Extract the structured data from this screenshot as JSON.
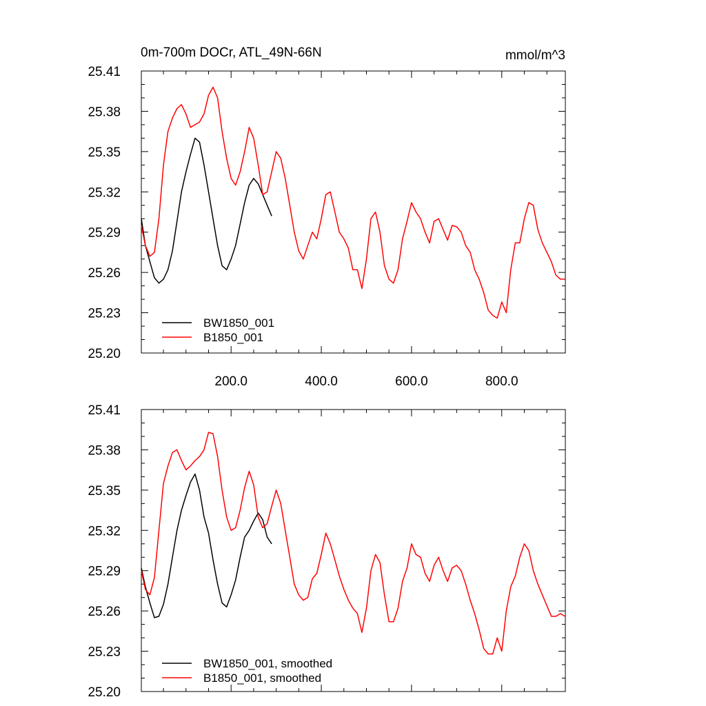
{
  "figure": {
    "title_left": "0m-700m DOCr, ATL_49N-66N",
    "title_right": "mmol/m^3"
  },
  "chart_data": [
    {
      "type": "line",
      "panel": "top",
      "xlim": [
        1,
        941
      ],
      "ylim": [
        25.2,
        25.41
      ],
      "x_ticks": [
        200,
        400,
        600,
        800
      ],
      "x_tick_labels": [
        "200.0",
        "400.0",
        "600.0",
        "800.0"
      ],
      "y_ticks": [
        25.2,
        25.23,
        25.26,
        25.29,
        25.32,
        25.35,
        25.38,
        25.41
      ],
      "y_tick_labels": [
        "25.20",
        "25.23",
        "25.26",
        "25.29",
        "25.32",
        "25.35",
        "25.38",
        "25.41"
      ],
      "legend_position": "bottom-left",
      "grid": false,
      "series": [
        {
          "name": "BW1850_001",
          "color": "#000000",
          "x": [
            1,
            10,
            20,
            30,
            40,
            50,
            60,
            70,
            80,
            90,
            100,
            110,
            120,
            130,
            140,
            150,
            160,
            170,
            180,
            190,
            200,
            210,
            220,
            230,
            240,
            250,
            260,
            270,
            280,
            290
          ],
          "y": [
            25.3,
            25.28,
            25.268,
            25.256,
            25.252,
            25.255,
            25.262,
            25.276,
            25.298,
            25.32,
            25.335,
            25.348,
            25.36,
            25.357,
            25.34,
            25.32,
            25.3,
            25.28,
            25.265,
            25.262,
            25.27,
            25.28,
            25.296,
            25.312,
            25.325,
            25.33,
            25.326,
            25.318,
            25.31,
            25.302
          ]
        },
        {
          "name": "B1850_001",
          "color": "#ff0000",
          "x": [
            1,
            10,
            20,
            30,
            40,
            50,
            60,
            70,
            80,
            90,
            100,
            110,
            120,
            130,
            140,
            150,
            160,
            170,
            180,
            190,
            200,
            210,
            220,
            230,
            240,
            250,
            260,
            270,
            280,
            290,
            300,
            310,
            320,
            330,
            340,
            350,
            360,
            370,
            380,
            390,
            400,
            410,
            420,
            430,
            440,
            450,
            460,
            470,
            480,
            490,
            500,
            510,
            520,
            530,
            540,
            550,
            560,
            570,
            580,
            590,
            600,
            610,
            620,
            630,
            640,
            650,
            660,
            670,
            680,
            690,
            700,
            710,
            720,
            730,
            740,
            750,
            760,
            770,
            780,
            790,
            800,
            810,
            820,
            830,
            840,
            850,
            860,
            870,
            880,
            890,
            900,
            910,
            920,
            930,
            940
          ],
          "y": [
            25.295,
            25.28,
            25.272,
            25.275,
            25.3,
            25.34,
            25.365,
            25.375,
            25.382,
            25.385,
            25.378,
            25.368,
            25.37,
            25.372,
            25.378,
            25.392,
            25.398,
            25.39,
            25.365,
            25.345,
            25.33,
            25.325,
            25.335,
            25.35,
            25.368,
            25.36,
            25.34,
            25.318,
            25.32,
            25.335,
            25.35,
            25.345,
            25.33,
            25.31,
            25.29,
            25.276,
            25.27,
            25.28,
            25.29,
            25.285,
            25.3,
            25.318,
            25.32,
            25.305,
            25.29,
            25.285,
            25.278,
            25.262,
            25.262,
            25.248,
            25.27,
            25.3,
            25.305,
            25.29,
            25.265,
            25.255,
            25.252,
            25.262,
            25.285,
            25.298,
            25.312,
            25.305,
            25.3,
            25.29,
            25.282,
            25.298,
            25.3,
            25.292,
            25.284,
            25.295,
            25.294,
            25.29,
            25.28,
            25.275,
            25.262,
            25.255,
            25.245,
            25.232,
            25.228,
            25.226,
            25.238,
            25.23,
            25.262,
            25.282,
            25.282,
            25.3,
            25.312,
            25.31,
            25.292,
            25.282,
            25.275,
            25.268,
            25.258,
            25.255,
            25.255
          ]
        }
      ]
    },
    {
      "type": "line",
      "panel": "bottom",
      "xlim": [
        1,
        941
      ],
      "ylim": [
        25.2,
        25.41
      ],
      "y_ticks": [
        25.2,
        25.23,
        25.26,
        25.29,
        25.32,
        25.35,
        25.38,
        25.41
      ],
      "y_tick_labels": [
        "25.20",
        "25.23",
        "25.26",
        "25.29",
        "25.32",
        "25.35",
        "25.38",
        "25.41"
      ],
      "legend_position": "bottom-left",
      "grid": false,
      "series": [
        {
          "name": "BW1850_001, smoothed",
          "color": "#000000",
          "x": [
            1,
            10,
            20,
            30,
            40,
            50,
            60,
            70,
            80,
            90,
            100,
            110,
            120,
            130,
            140,
            150,
            160,
            170,
            180,
            190,
            200,
            210,
            220,
            230,
            240,
            250,
            260,
            270,
            280,
            290
          ],
          "y": [
            25.292,
            25.278,
            25.266,
            25.255,
            25.256,
            25.265,
            25.28,
            25.3,
            25.32,
            25.335,
            25.346,
            25.356,
            25.362,
            25.35,
            25.33,
            25.318,
            25.298,
            25.28,
            25.266,
            25.263,
            25.272,
            25.283,
            25.3,
            25.315,
            25.32,
            25.327,
            25.333,
            25.328,
            25.315,
            25.31
          ]
        },
        {
          "name": "B1850_001, smoothed",
          "color": "#ff0000",
          "x": [
            1,
            10,
            20,
            30,
            40,
            50,
            60,
            70,
            80,
            90,
            100,
            110,
            120,
            130,
            140,
            150,
            160,
            170,
            180,
            190,
            200,
            210,
            220,
            230,
            240,
            250,
            260,
            270,
            280,
            290,
            300,
            310,
            320,
            330,
            340,
            350,
            360,
            370,
            380,
            390,
            400,
            410,
            420,
            430,
            440,
            450,
            460,
            470,
            480,
            490,
            500,
            510,
            520,
            530,
            540,
            550,
            560,
            570,
            580,
            590,
            600,
            610,
            620,
            630,
            640,
            650,
            660,
            670,
            680,
            690,
            700,
            710,
            720,
            730,
            740,
            750,
            760,
            770,
            780,
            790,
            800,
            810,
            820,
            830,
            840,
            850,
            860,
            870,
            880,
            890,
            900,
            910,
            920,
            930,
            940
          ],
          "y": [
            25.29,
            25.276,
            25.272,
            25.285,
            25.32,
            25.355,
            25.368,
            25.378,
            25.38,
            25.372,
            25.365,
            25.368,
            25.372,
            25.375,
            25.38,
            25.393,
            25.392,
            25.375,
            25.35,
            25.33,
            25.32,
            25.322,
            25.335,
            25.352,
            25.364,
            25.354,
            25.33,
            25.322,
            25.325,
            25.338,
            25.35,
            25.34,
            25.32,
            25.3,
            25.28,
            25.272,
            25.268,
            25.27,
            25.284,
            25.288,
            25.302,
            25.318,
            25.31,
            25.298,
            25.286,
            25.276,
            25.268,
            25.262,
            25.258,
            25.244,
            25.262,
            25.29,
            25.302,
            25.296,
            25.272,
            25.252,
            25.252,
            25.262,
            25.282,
            25.292,
            25.31,
            25.302,
            25.3,
            25.288,
            25.282,
            25.294,
            25.3,
            25.29,
            25.282,
            25.292,
            25.294,
            25.29,
            25.28,
            25.268,
            25.258,
            25.246,
            25.232,
            25.228,
            25.228,
            25.24,
            25.23,
            25.26,
            25.278,
            25.286,
            25.3,
            25.31,
            25.305,
            25.29,
            25.28,
            25.272,
            25.264,
            25.256,
            25.256,
            25.258,
            25.256
          ]
        }
      ]
    }
  ]
}
